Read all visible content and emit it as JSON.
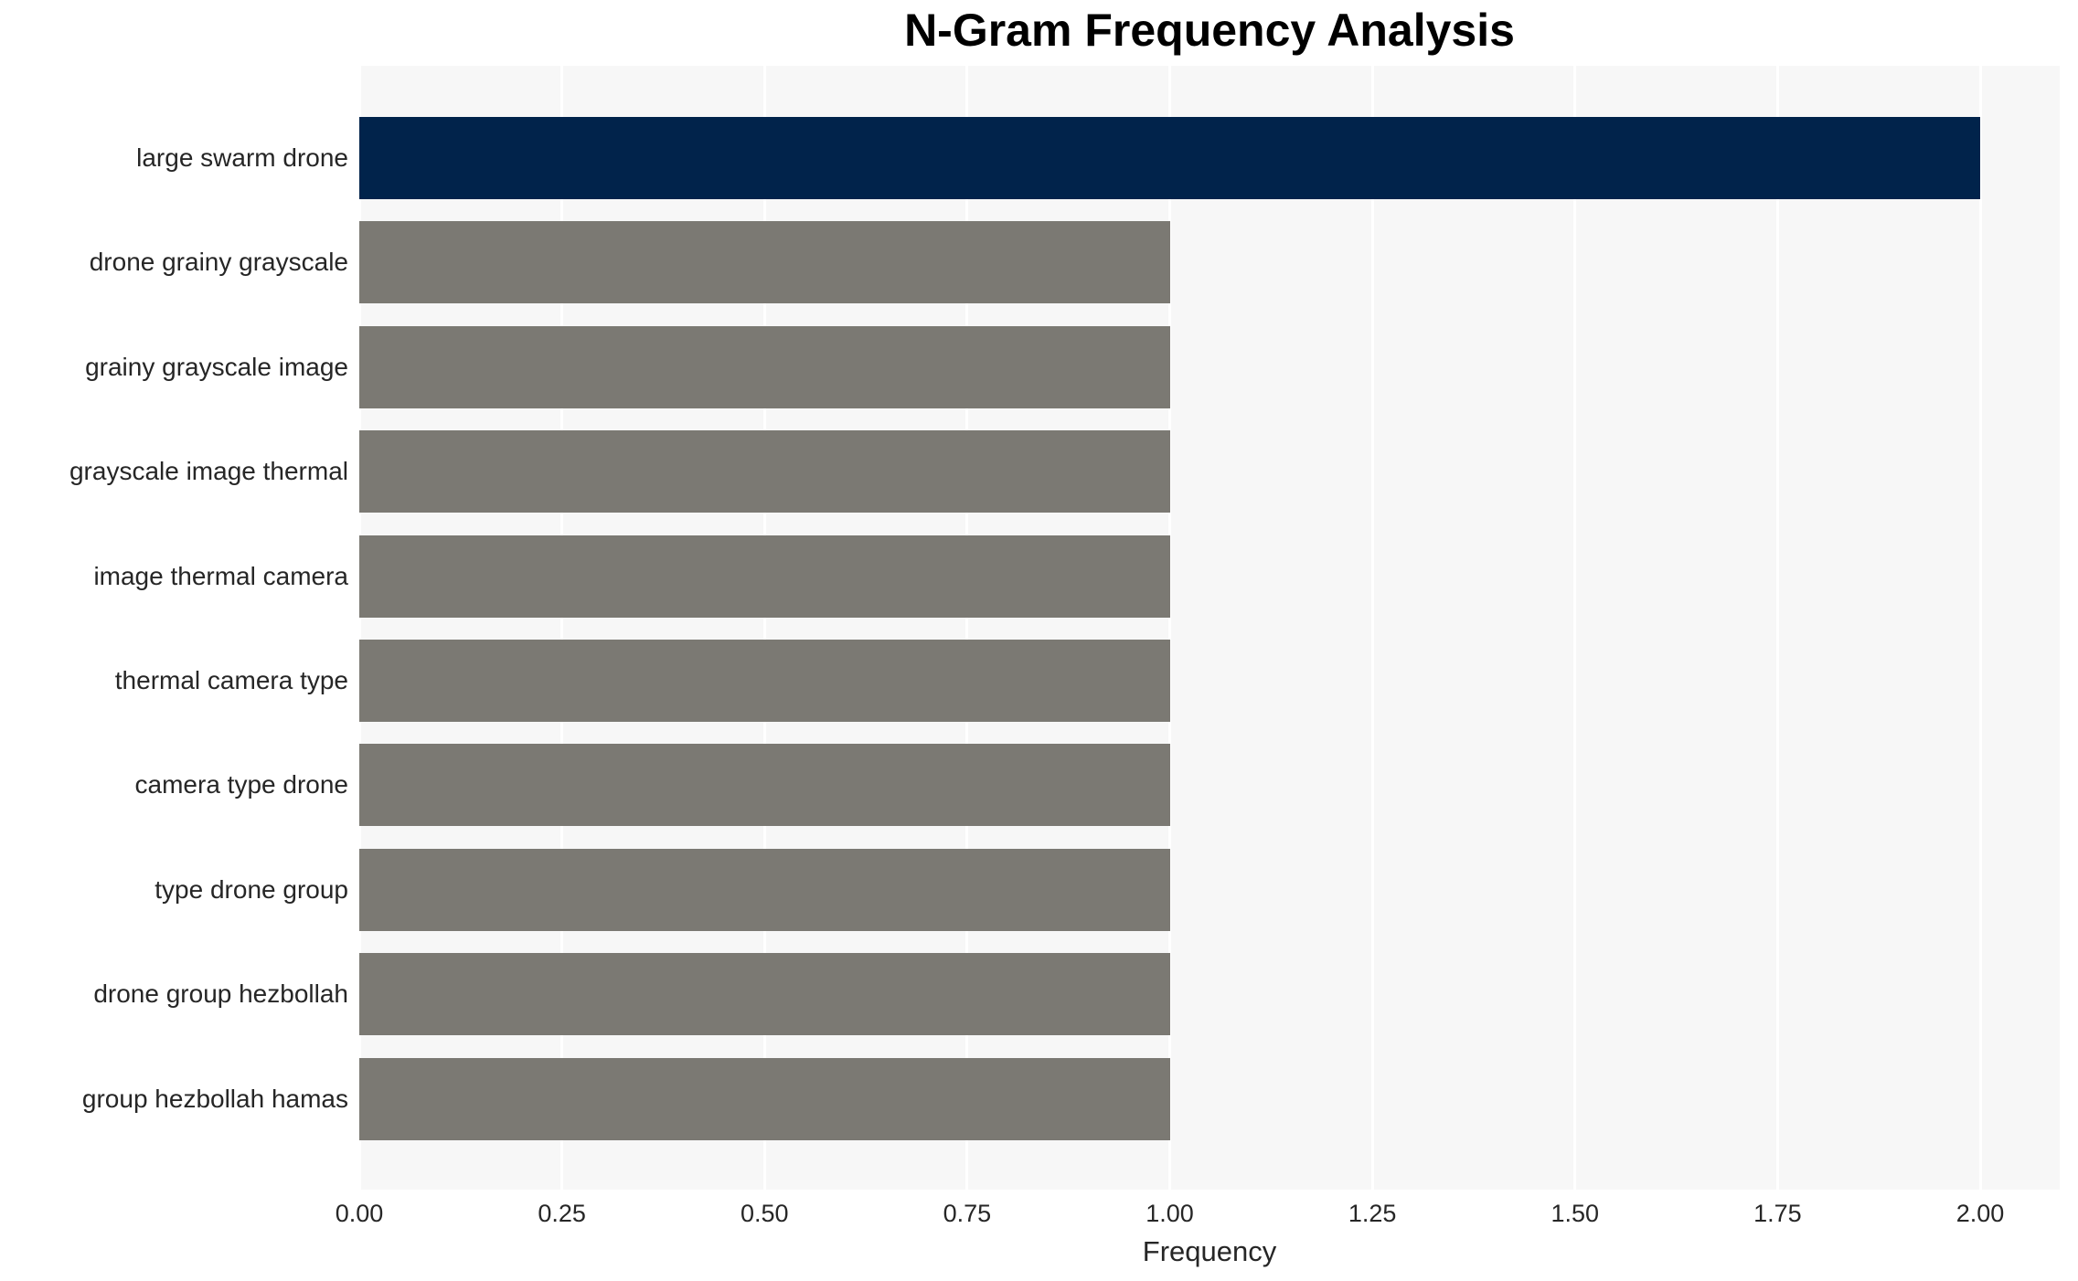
{
  "chart_data": {
    "type": "bar",
    "orientation": "horizontal",
    "title": "N-Gram Frequency Analysis",
    "xlabel": "Frequency",
    "ylabel": "",
    "categories": [
      "large swarm drone",
      "drone grainy grayscale",
      "grainy grayscale image",
      "grayscale image thermal",
      "image thermal camera",
      "thermal camera type",
      "camera type drone",
      "type drone group",
      "drone group hezbollah",
      "group hezbollah hamas"
    ],
    "values": [
      2,
      1,
      1,
      1,
      1,
      1,
      1,
      1,
      1,
      1
    ],
    "bar_colors": [
      "#01234b",
      "#7b7973",
      "#7b7973",
      "#7b7973",
      "#7b7973",
      "#7b7973",
      "#7b7973",
      "#7b7973",
      "#7b7973",
      "#7b7973"
    ],
    "xticks": [
      "0.00",
      "0.25",
      "0.50",
      "0.75",
      "1.00",
      "1.25",
      "1.50",
      "1.75",
      "2.00"
    ],
    "xtick_values": [
      0,
      0.25,
      0.5,
      0.75,
      1.0,
      1.25,
      1.5,
      1.75,
      2.0
    ],
    "xlim": [
      0,
      2.1
    ],
    "grid": true,
    "legend": false,
    "colors": {
      "highlight_bar": "#01234b",
      "default_bar": "#7b7973",
      "plot_background": "#f7f7f7",
      "grid_line": "#ffffff",
      "figure_background": "#ffffff",
      "text": "#262626",
      "title_text": "#000000"
    }
  }
}
